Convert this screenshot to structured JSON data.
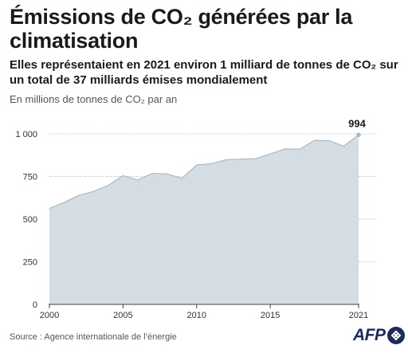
{
  "header": {
    "title": "Émissions de CO₂ générées par la climatisation",
    "subtitle": "Elles représentaient en 2021 environ 1 milliard de tonnes de CO₂ sur un total de 37 milliards émises mondialement",
    "unit_label": "En millions de tonnes de CO₂ par an"
  },
  "footer": {
    "source": "Source : Agence internationale de l’énergie",
    "logo_text": "AFP"
  },
  "colors": {
    "area_fill": "#d3dde3",
    "line": "#a9bac4",
    "grid": "#bbbbbb",
    "axis": "#444444",
    "point": "#a9bac4",
    "logo": "#1d2a5c"
  },
  "chart_data": {
    "type": "area",
    "x": [
      2000,
      2001,
      2002,
      2003,
      2004,
      2005,
      2006,
      2007,
      2008,
      2009,
      2010,
      2011,
      2012,
      2013,
      2014,
      2015,
      2016,
      2017,
      2018,
      2019,
      2020,
      2021
    ],
    "series": [
      {
        "values": [
          563,
          598,
          640,
          662,
          698,
          755,
          730,
          768,
          765,
          739,
          818,
          825,
          848,
          852,
          854,
          882,
          912,
          910,
          962,
          960,
          928,
          994
        ]
      }
    ],
    "ylim": [
      0,
      1000
    ],
    "y_ticks": [
      0,
      250,
      500,
      750,
      1000
    ],
    "y_tick_labels": [
      "0",
      "250",
      "500",
      "750",
      "1 000"
    ],
    "x_ticks": [
      2000,
      2005,
      2010,
      2015,
      2021
    ],
    "x_tick_labels": [
      "2000",
      "2005",
      "2010",
      "2015",
      "2021"
    ],
    "annotation": {
      "x": 2021,
      "label": "994"
    },
    "grid": true,
    "xlabel": "",
    "ylabel": ""
  }
}
